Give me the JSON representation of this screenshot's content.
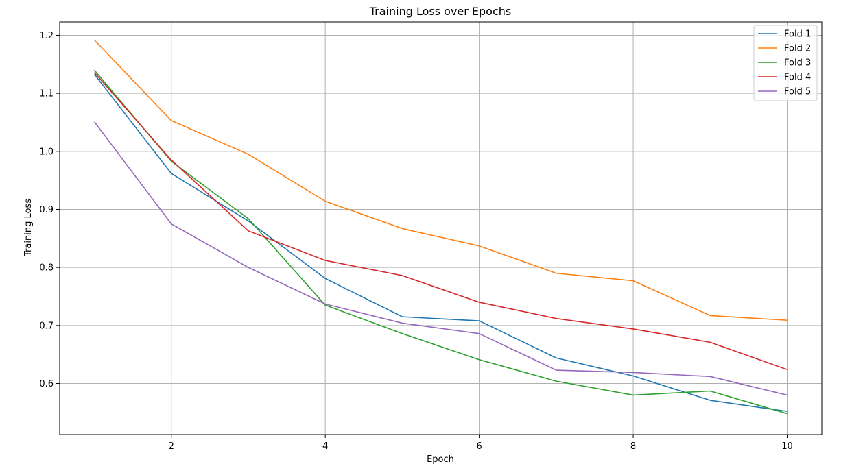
{
  "chart_data": {
    "type": "line",
    "title": "Training Loss over Epochs",
    "xlabel": "Epoch",
    "ylabel": "Training Loss",
    "x": [
      1,
      2,
      3,
      4,
      5,
      6,
      7,
      8,
      9,
      10
    ],
    "xlim": [
      0.55,
      10.45
    ],
    "ylim": [
      0.512,
      1.223
    ],
    "xticks": [
      2,
      4,
      6,
      8,
      10
    ],
    "yticks": [
      0.6,
      0.7,
      0.8,
      0.9,
      1.0,
      1.1,
      1.2
    ],
    "ytick_labels": [
      "0.6",
      "0.7",
      "0.8",
      "0.9",
      "1.0",
      "1.1",
      "1.2"
    ],
    "grid": true,
    "legend_position": "top-right",
    "series": [
      {
        "name": "Fold 1",
        "color": "#1f77b4",
        "values": [
          1.133,
          0.962,
          0.88,
          0.781,
          0.715,
          0.708,
          0.644,
          0.613,
          0.571,
          0.552
        ]
      },
      {
        "name": "Fold 2",
        "color": "#ff7f0e",
        "values": [
          1.192,
          1.053,
          0.995,
          0.914,
          0.867,
          0.837,
          0.79,
          0.777,
          0.717,
          0.709
        ]
      },
      {
        "name": "Fold 3",
        "color": "#2ca02c",
        "values": [
          1.14,
          0.983,
          0.884,
          0.735,
          0.686,
          0.641,
          0.604,
          0.58,
          0.587,
          0.548
        ]
      },
      {
        "name": "Fold 4",
        "color": "#d62728",
        "values": [
          1.136,
          0.985,
          0.863,
          0.812,
          0.786,
          0.74,
          0.712,
          0.694,
          0.671,
          0.624
        ]
      },
      {
        "name": "Fold 5",
        "color": "#9467bd",
        "values": [
          1.051,
          0.875,
          0.8,
          0.737,
          0.704,
          0.686,
          0.623,
          0.619,
          0.612,
          0.58
        ]
      }
    ]
  }
}
